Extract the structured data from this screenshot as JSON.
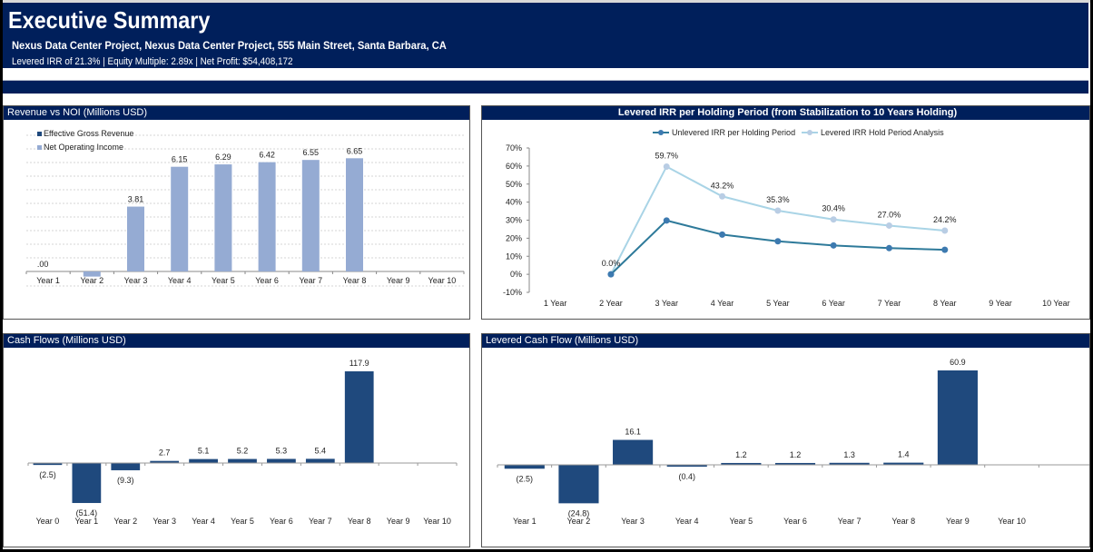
{
  "header": {
    "title": "Executive Summary",
    "subtitle": "Nexus Data Center Project, Nexus Data Center Project, 555 Main Street, Santa Barbara, CA",
    "metrics": "Levered IRR of 21.3% | Equity Multiple: 2.89x | Net Profit: $54,408,172"
  },
  "colors": {
    "navy": "#001f5b",
    "bar_dark": "#1f497d",
    "bar_light": "#95abd3",
    "line_dark": "#2e7a9a",
    "line_dark_marker": "#3d7ab0",
    "line_light": "#a9d4e6",
    "line_light_marker": "#b9cde4"
  },
  "chart_data": [
    {
      "id": "revenue_noi",
      "type": "bar",
      "title": "Revenue vs NOI (Millions USD)",
      "categories": [
        "Year 1",
        "Year 2",
        "Year 3",
        "Year 4",
        "Year 5",
        "Year 6",
        "Year 7",
        "Year 8",
        "Year 9",
        "Year 10"
      ],
      "series": [
        {
          "name": "Effective Gross Revenue",
          "values": [
            null,
            null,
            null,
            null,
            null,
            null,
            null,
            null,
            null,
            null
          ]
        },
        {
          "name": "Net Operating Income",
          "values": [
            0.0,
            -0.3,
            3.81,
            6.15,
            6.29,
            6.42,
            6.55,
            6.65,
            null,
            null
          ]
        }
      ],
      "data_labels": [
        ".00",
        "",
        "3.81",
        "6.15",
        "6.29",
        "6.42",
        "6.55",
        "6.65",
        "",
        ""
      ],
      "ylim": [
        -0.8,
        8.0
      ],
      "gridlines": true,
      "legend": "top-left"
    },
    {
      "id": "irr_hold",
      "type": "line",
      "title": "Levered IRR per Holding Period (from Stabilization to 10 Years Holding)",
      "categories": [
        "1 Year",
        "2 Year",
        "3 Year",
        "4 Year",
        "5 Year",
        "6 Year",
        "7 Year",
        "8 Year",
        "9 Year",
        "10 Year"
      ],
      "series": [
        {
          "name": "Unlevered IRR per Holding Period",
          "values": [
            null,
            0.0,
            29.8,
            22.0,
            18.3,
            16.0,
            14.5,
            13.6,
            null,
            null
          ]
        },
        {
          "name": "Levered IRR Hold Period Analysis",
          "values": [
            null,
            0.0,
            59.7,
            43.2,
            35.3,
            30.4,
            27.0,
            24.2,
            null,
            null
          ]
        }
      ],
      "data_labels": [
        "",
        "0.0%",
        "59.7%",
        "43.2%",
        "35.3%",
        "30.4%",
        "27.0%",
        "24.2%",
        "",
        ""
      ],
      "yticks": [
        "70%",
        "60%",
        "50%",
        "40%",
        "30%",
        "20%",
        "10%",
        "0%",
        "-10%"
      ],
      "ylim": [
        -10,
        70
      ],
      "legend": "top-center"
    },
    {
      "id": "cash_flows",
      "type": "bar",
      "title": "Cash Flows (Millions USD)",
      "categories": [
        "Year 0",
        "Year 1",
        "Year 2",
        "Year 3",
        "Year 4",
        "Year 5",
        "Year 6",
        "Year 7",
        "Year 8",
        "Year 9",
        "Year 10"
      ],
      "values": [
        -2.5,
        -51.4,
        -9.3,
        2.7,
        5.1,
        5.2,
        5.3,
        5.4,
        117.9,
        null,
        null
      ],
      "data_labels": [
        "(2.5)",
        "(51.4)",
        "(9.3)",
        "2.7",
        "5.1",
        "5.2",
        "5.3",
        "5.4",
        "117.9",
        "",
        ""
      ],
      "ylim": [
        -60,
        125
      ]
    },
    {
      "id": "levered_cash_flow",
      "type": "bar",
      "title": "Levered Cash Flow (Millions USD)",
      "categories": [
        "Year 1",
        "Year 2",
        "Year 3",
        "Year 4",
        "Year 5",
        "Year 6",
        "Year 7",
        "Year 8",
        "Year 9",
        "Year 10",
        ""
      ],
      "values": [
        -2.5,
        -24.8,
        16.1,
        -0.4,
        1.2,
        1.2,
        1.3,
        1.4,
        60.9,
        null,
        null
      ],
      "data_labels": [
        "(2.5)",
        "(24.8)",
        "16.1",
        "(0.4)",
        "1.2",
        "1.2",
        "1.3",
        "1.4",
        "60.9",
        "",
        ""
      ],
      "ylim": [
        -30,
        64
      ]
    }
  ]
}
